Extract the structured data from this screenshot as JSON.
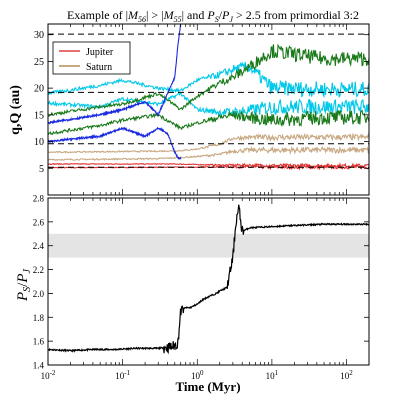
{
  "chart_data": [
    {
      "type": "line",
      "panel": "top",
      "title": "Example of |M56| > |M55| and PS/PJ > 2.5 from primordial 3:2",
      "title_parts": {
        "prefix": "Example of |",
        "m56": "M",
        "m56_sub": "56",
        "mid1": "| > |",
        "m55": "M",
        "m55_sub": "55",
        "mid2": "| and ",
        "ps": "P",
        "ps_sub": "S",
        "slash": "/",
        "pj": "P",
        "pj_sub": "J",
        "suffix": " > 2.5 from primordial 3:2"
      },
      "ylabel": "q,Q (au)",
      "xscale": "log",
      "xlim": [
        0.01,
        200
      ],
      "ylim": [
        0,
        32
      ],
      "yticks": [
        5,
        10,
        15,
        20,
        25,
        30
      ],
      "ytick_labels": [
        "5",
        "10",
        "15",
        "20",
        "25",
        "30"
      ],
      "dashed_lines": [
        5.2,
        9.6,
        19.2,
        30.1
      ],
      "legend": {
        "placement": "top-left",
        "entries": [
          {
            "name": "Jupiter",
            "color": "#e87070"
          },
          {
            "name": "Saturn",
            "color": "#c8a882"
          }
        ]
      },
      "series": [
        {
          "name": "Jupiter",
          "color": "#e03030",
          "x": [
            0.01,
            0.5,
            1,
            2,
            5,
            10,
            50,
            200
          ],
          "q": [
            5.1,
            5.2,
            5.2,
            5.3,
            5.2,
            5.2,
            5.2,
            5.2
          ],
          "Q": [
            5.8,
            5.8,
            5.7,
            5.6,
            5.6,
            5.5,
            5.5,
            5.5
          ]
        },
        {
          "name": "Saturn",
          "color": "#c8a882",
          "x": [
            0.01,
            0.3,
            0.6,
            1,
            2,
            3,
            5,
            10,
            50,
            200
          ],
          "q": [
            6.6,
            6.8,
            7.0,
            7.2,
            7.6,
            8.2,
            8.4,
            8.4,
            8.4,
            8.4
          ],
          "Q": [
            8.0,
            8.2,
            8.3,
            8.6,
            9.5,
            10.6,
            10.8,
            10.8,
            10.8,
            10.8
          ]
        },
        {
          "name": "",
          "color": "#00c8e8",
          "x": [
            0.01,
            0.05,
            0.1,
            0.3,
            0.6,
            1,
            2,
            3,
            5,
            10,
            50,
            200
          ],
          "q": [
            17.2,
            16.5,
            18.0,
            17.0,
            19.0,
            16.0,
            15.5,
            15.5,
            15.8,
            16.5,
            16.5,
            16.5
          ],
          "Q": [
            19.0,
            20.5,
            21.5,
            20.0,
            19.5,
            21.5,
            22.5,
            23.5,
            24.0,
            20.0,
            19.8,
            19.8
          ]
        },
        {
          "name": "",
          "color": "#1a7a1a",
          "x": [
            0.01,
            0.05,
            0.1,
            0.3,
            0.6,
            1,
            2,
            3,
            5,
            10,
            50,
            200
          ],
          "q": [
            11.5,
            13.0,
            14.0,
            15.0,
            12.5,
            13.5,
            14.5,
            15.0,
            14.5,
            14.0,
            14.5,
            14.5
          ],
          "Q": [
            15.0,
            16.5,
            17.0,
            19.0,
            16.0,
            18.5,
            21.0,
            22.0,
            24.0,
            27.0,
            25.5,
            25.5
          ]
        },
        {
          "name": "",
          "color": "#1a2ae0",
          "x": [
            0.01,
            0.05,
            0.1,
            0.2,
            0.3,
            0.4,
            0.5,
            0.55,
            0.6
          ],
          "q": [
            10.0,
            11.0,
            12.5,
            11.0,
            12.5,
            11.5,
            8.0,
            7.0,
            6.8
          ],
          "Q": [
            13.5,
            15.0,
            16.0,
            17.5,
            15.0,
            19.0,
            22.0,
            28.0,
            32.0
          ]
        }
      ]
    },
    {
      "type": "line",
      "panel": "bottom",
      "xlabel": "Time (Myr)",
      "ylabel": "PS/PJ",
      "ylabel_parts": {
        "ps": "P",
        "ps_sub": "S",
        "slash": "/",
        "pj": "P",
        "pj_sub": "J"
      },
      "xscale": "log",
      "xlim": [
        0.01,
        200
      ],
      "ylim": [
        1.4,
        2.8
      ],
      "yticks": [
        1.4,
        1.6,
        1.8,
        2.0,
        2.2,
        2.4,
        2.6,
        2.8
      ],
      "ytick_labels": [
        "1.4",
        "1.6",
        "1.8",
        "2.0",
        "2.2",
        "2.4",
        "2.6",
        "2.8"
      ],
      "xtick_labels": [
        {
          "base": "10",
          "exp": "-2"
        },
        {
          "base": "10",
          "exp": "-1"
        },
        {
          "base": "10",
          "exp": "0"
        },
        {
          "base": "10",
          "exp": "1"
        },
        {
          "base": "10",
          "exp": "2"
        }
      ],
      "shaded_band": [
        2.3,
        2.5
      ],
      "series": [
        {
          "name": "",
          "color": "#000000",
          "x": [
            0.01,
            0.02,
            0.04,
            0.08,
            0.15,
            0.3,
            0.45,
            0.55,
            0.6,
            0.65,
            0.7,
            0.8,
            1.0,
            1.2,
            1.5,
            1.8,
            2.0,
            2.5,
            3.0,
            3.3,
            3.6,
            4.0,
            5,
            10,
            20,
            50,
            100,
            200
          ],
          "y": [
            1.53,
            1.52,
            1.53,
            1.53,
            1.54,
            1.54,
            1.55,
            1.58,
            1.85,
            1.87,
            1.88,
            1.88,
            1.91,
            1.95,
            1.98,
            2.0,
            2.02,
            2.05,
            2.3,
            2.6,
            2.72,
            2.52,
            2.55,
            2.56,
            2.57,
            2.58,
            2.58,
            2.58
          ]
        }
      ]
    }
  ]
}
